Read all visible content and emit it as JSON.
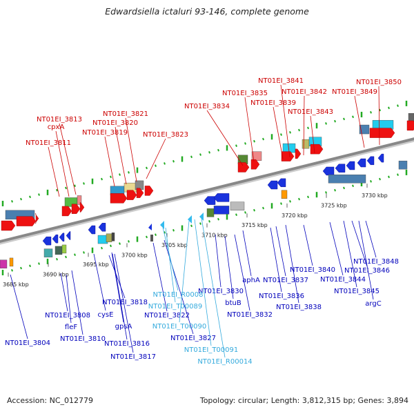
{
  "title": "Edwardsiella ictaluri 93-146, complete genome",
  "footer": {
    "accession": "Accession: NC_012779",
    "topology": "Topology: circular; Length: 3,812,315 bp; Genes: 3,894"
  },
  "colors": {
    "forward_label": "#cc0000",
    "reverse_label": "#0000bb",
    "rna_label": "#33aadd",
    "axis": "#888888",
    "tick": "#22aa22"
  },
  "scale_labels": [
    "3685 kbp",
    "3690 kbp",
    "3695 kbp",
    "3700 kbp",
    "3705 kbp",
    "3710 kbp",
    "3715 kbp",
    "3720 kbp",
    "3725 kbp",
    "3730 kbp"
  ],
  "forward_labels": [
    "NT01EI_3811",
    "cpxA",
    "NT01EI_3813",
    "NT01EI_3819",
    "NT01EI_3820",
    "NT01EI_3821",
    "NT01EI_3823",
    "NT01EI_3834",
    "NT01EI_3835",
    "NT01EI_3839",
    "NT01EI_3841",
    "NT01EI_3842",
    "NT01EI_3843",
    "NT01EI_3849",
    "NT01EI_3850"
  ],
  "reverse_labels": [
    "NT01EI_3804",
    "NT01EI_3808",
    "fleF",
    "NT01EI_3810",
    "NT01EI_3816",
    "gpsA",
    "cysE",
    "NT01EI_3817",
    "NT01EI_3818",
    "NT01EI_3822",
    "NT01EI_3827",
    "NT01EI_3830",
    "btuB",
    "NT01EI_3832",
    "aphA",
    "NT01EI_3836",
    "NT01EI_3837",
    "NT01EI_3838",
    "NT01EI_3840",
    "NT01EI_3844",
    "NT01EI_3845",
    "NT01EI_3846",
    "NT01EI_3848",
    "argC"
  ],
  "rna_labels": [
    "NT01EI_R0008",
    "NT01EI_T00089",
    "NT01EI_T00090",
    "NT01EI_T00091",
    "NT01EI_R00014"
  ]
}
